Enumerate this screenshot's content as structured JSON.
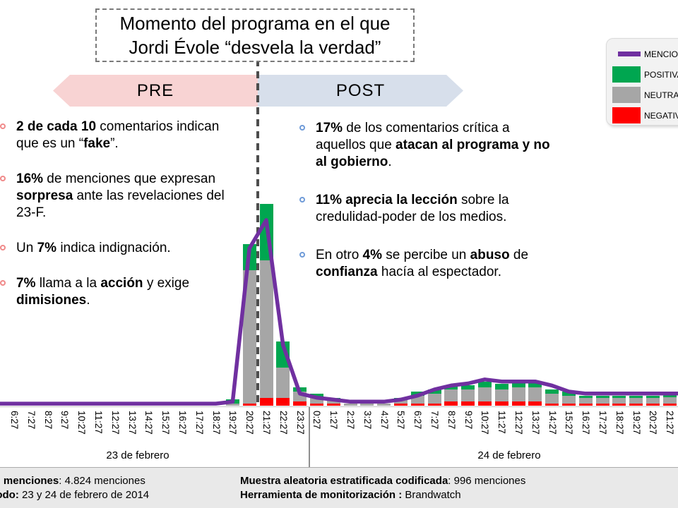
{
  "header": {
    "title_line1": "Momento del programa en el que",
    "title_line2": "Jordi Évole “desvela la verdad”",
    "pre_label": "PRE",
    "post_label": "POST"
  },
  "insights_pre": [
    [
      {
        "t": "2 de cada 10",
        "b": true
      },
      {
        "t": " comentarios indican que es un “",
        "b": false
      },
      {
        "t": "fake",
        "b": true
      },
      {
        "t": "”.",
        "b": false
      }
    ],
    [
      {
        "t": "16%",
        "b": true
      },
      {
        "t": " de menciones que expresan ",
        "b": false
      },
      {
        "t": "sorpresa",
        "b": true
      },
      {
        "t": " ante las revelaciones del 23-F.",
        "b": false
      }
    ],
    [
      {
        "t": "Un ",
        "b": false
      },
      {
        "t": "7%",
        "b": true
      },
      {
        "t": " indica indignación.",
        "b": false
      }
    ],
    [
      {
        "t": "7%",
        "b": true
      },
      {
        "t": " llama a la ",
        "b": false
      },
      {
        "t": "acción",
        "b": true
      },
      {
        "t": " y exige ",
        "b": false
      },
      {
        "t": "dimisiones",
        "b": true
      },
      {
        "t": ".",
        "b": false
      }
    ]
  ],
  "insights_post": [
    [
      {
        "t": "17%",
        "b": true
      },
      {
        "t": " de los comentarios crítica a aquellos que ",
        "b": false
      },
      {
        "t": "atacan al programa y no al gobierno",
        "b": true
      },
      {
        "t": ".",
        "b": false
      }
    ],
    [
      {
        "t": "11% aprecia la lección",
        "b": true
      },
      {
        "t": " sobre la credulidad-poder de los medios.",
        "b": false
      }
    ],
    [
      {
        "t": "En otro ",
        "b": false
      },
      {
        "t": "4%",
        "b": true
      },
      {
        "t": " se percibe un ",
        "b": false
      },
      {
        "t": "abuso",
        "b": true
      },
      {
        "t": " de ",
        "b": false
      },
      {
        "t": "confianza",
        "b": true
      },
      {
        "t": " hacía al espectador.",
        "b": false
      }
    ]
  ],
  "legend": {
    "items": [
      {
        "label": "MENCIONES",
        "swatch": "line",
        "color": "#7030A0"
      },
      {
        "label": "POSITIVAS",
        "swatch": "square",
        "color": "#00A650"
      },
      {
        "label": "NEUTRAS",
        "swatch": "square",
        "color": "#A6A6A6"
      },
      {
        "label": "NEGATIVAS",
        "swatch": "square",
        "color": "#FF0000"
      }
    ]
  },
  "chart_data": {
    "type": "combo: stacked sentiment bars + mentions line",
    "x_labels": [
      "6:27",
      "7:27",
      "8:27",
      "9:27",
      "10:27",
      "11:27",
      "12:27",
      "13:27",
      "14:27",
      "15:27",
      "16:27",
      "17:27",
      "18:27",
      "19:27",
      "20:27",
      "21:27",
      "22:27",
      "23:27",
      "0:27",
      "1:27",
      "2:27",
      "3:27",
      "4:27",
      "5:27",
      "6:27",
      "7:27",
      "8:27",
      "9:27",
      "10:27",
      "11:27",
      "12:27",
      "13:27",
      "14:27",
      "15:27",
      "16:27",
      "17:27",
      "18:27",
      "19:27",
      "20:27",
      "21:27"
    ],
    "day_groups": [
      {
        "label": "23 de febrero",
        "first": "6:27",
        "last": "23:27"
      },
      {
        "label": "24 de febrero",
        "first": "0:27",
        "last": "21:27"
      }
    ],
    "y_axis": "no numeric axis shown; values are relative volume on a 0–100 scale estimated from bar/line heights (100 = peak at 21:27 on 23 feb)",
    "legend_position": "top-right",
    "series": [
      {
        "name": "MENCIONES",
        "type": "line",
        "color": "#7030A0",
        "values": [
          1,
          1,
          1,
          1,
          1,
          1,
          1,
          1,
          1,
          1,
          1,
          1,
          1,
          2,
          78,
          92,
          30,
          6,
          4,
          3,
          2,
          2,
          2,
          3,
          5,
          8,
          10,
          11,
          13,
          12,
          12,
          12,
          10,
          7,
          6,
          6,
          6,
          6,
          6,
          6
        ]
      },
      {
        "name": "POSITIVAS",
        "type": "bar",
        "stack": "top",
        "color": "#00A650",
        "values": [
          0,
          0,
          0,
          0,
          0,
          0,
          0,
          0,
          0,
          0,
          0,
          0,
          0,
          2,
          13,
          28,
          13,
          2,
          2,
          1,
          0,
          0,
          0,
          1,
          2,
          2,
          2,
          2,
          3,
          3,
          3,
          3,
          2,
          2,
          1,
          1,
          1,
          1,
          1,
          2
        ]
      },
      {
        "name": "NEUTRAS",
        "type": "bar",
        "stack": "middle",
        "color": "#A6A6A6",
        "values": [
          0,
          0,
          0,
          0,
          0,
          0,
          0,
          0,
          0,
          0,
          0,
          0,
          0,
          1,
          66,
          68,
          15,
          5,
          3,
          2,
          1,
          1,
          1,
          2,
          4,
          5,
          6,
          6,
          7,
          6,
          7,
          7,
          5,
          4,
          3,
          3,
          3,
          3,
          3,
          3
        ]
      },
      {
        "name": "NEGATIVAS",
        "type": "bar",
        "stack": "bottom",
        "color": "#FF0000",
        "values": [
          0,
          0,
          0,
          0,
          0,
          0,
          0,
          0,
          0,
          0,
          0,
          0,
          0,
          0,
          1,
          4,
          4,
          2,
          1,
          1,
          0,
          0,
          0,
          1,
          1,
          1,
          2,
          2,
          2,
          2,
          2,
          2,
          1,
          1,
          1,
          1,
          1,
          1,
          1,
          1
        ]
      }
    ],
    "annotations": [
      {
        "type": "vline-dashed",
        "label": "Momento del programa en el que Jordi Évole “desvela la verdad”",
        "position": "between 20:27 and 21:27, 23 de febrero"
      }
    ]
  },
  "footer": {
    "left_lines": [
      [
        {
          "t": "Total menciones",
          "b": true
        },
        {
          "t": ": 4.824 menciones",
          "b": false
        }
      ],
      [
        {
          "t": "Periodo:",
          "b": true
        },
        {
          "t": " 23 y 24 de febrero de 2014",
          "b": false
        }
      ]
    ],
    "right_lines": [
      [
        {
          "t": "Muestra aleatoria estratificada codificada",
          "b": true
        },
        {
          "t": ": 996 menciones",
          "b": false
        }
      ],
      [
        {
          "t": "Herramienta de monitorización :",
          "b": true
        },
        {
          "t": " Brandwatch",
          "b": false
        }
      ]
    ]
  },
  "colors": {
    "pre_arrow": "#F8D3D3",
    "post_arrow": "#D7DFEB",
    "accent_purple": "#7030A0",
    "positive_green": "#00A650",
    "neutral_gray": "#A6A6A6",
    "negative_red": "#FF0000",
    "pre_bullet": "#F08A8A",
    "post_bullet": "#6F9BD8"
  }
}
